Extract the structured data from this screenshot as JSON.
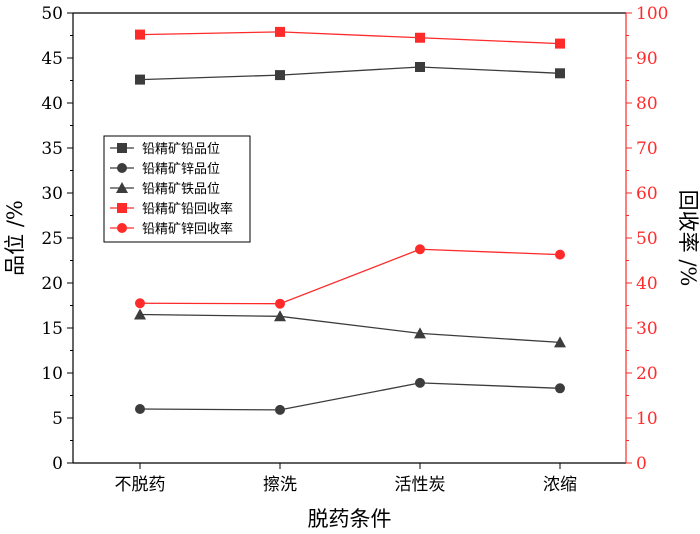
{
  "chart_data": {
    "type": "line",
    "title": "",
    "categories": [
      "不脱药",
      "擦洗",
      "活性炭",
      "浓缩"
    ],
    "xlabel": "脱药条件",
    "ylabel_left": "品位 /%",
    "ylabel_right": "回收率 /%",
    "ylim_left": [
      0,
      50
    ],
    "ylim_right": [
      0,
      100
    ],
    "yticks_left": [
      0,
      5,
      10,
      15,
      20,
      25,
      30,
      35,
      40,
      45,
      50
    ],
    "yticks_right": [
      0,
      10,
      20,
      30,
      40,
      50,
      60,
      70,
      80,
      90,
      100
    ],
    "grid": false,
    "legend_position": "upper-left",
    "colors": {
      "black_series": "#3c3c3c",
      "red_series": "#ff2a2a",
      "right_axis": "#ff2a2a",
      "frame": "#000000"
    },
    "series": [
      {
        "name": "铅精矿铅品位",
        "axis": "left",
        "marker": "square",
        "color": "#3c3c3c",
        "values": [
          42.6,
          43.1,
          44.0,
          43.3
        ]
      },
      {
        "name": "铅精矿锌品位",
        "axis": "left",
        "marker": "circle",
        "color": "#3c3c3c",
        "values": [
          6.0,
          5.9,
          8.9,
          8.3
        ]
      },
      {
        "name": "铅精矿铁品位",
        "axis": "left",
        "marker": "triangle",
        "color": "#3c3c3c",
        "values": [
          16.5,
          16.3,
          14.4,
          13.4
        ]
      },
      {
        "name": "铅精矿铅回收率",
        "axis": "right",
        "marker": "square",
        "color": "#ff2a2a",
        "values": [
          95.2,
          95.8,
          94.5,
          93.2
        ]
      },
      {
        "name": "铅精矿锌回收率",
        "axis": "right",
        "marker": "circle",
        "color": "#ff2a2a",
        "values": [
          35.5,
          35.4,
          47.5,
          46.3
        ]
      }
    ]
  }
}
